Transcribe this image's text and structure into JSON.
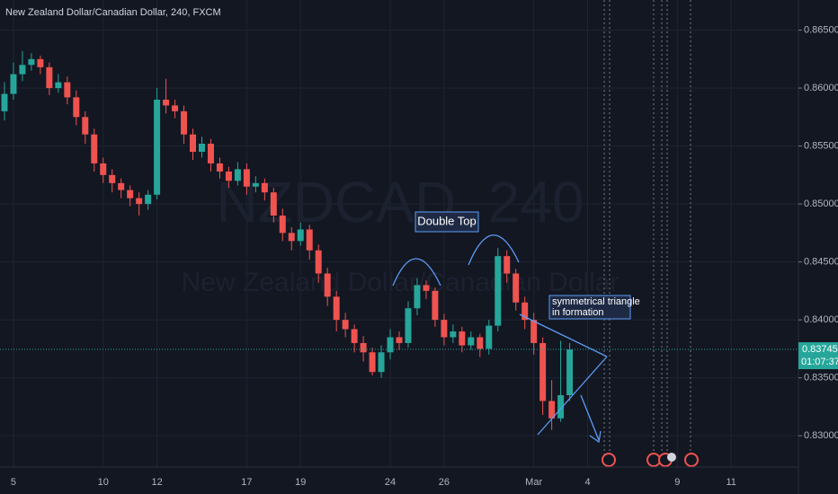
{
  "chart_data": {
    "type": "candlestick",
    "title": "New Zealand Dollar/Canadian Dollar, 240, FXCM",
    "watermark": {
      "symbol": "NZDCAD, 240",
      "description": "New Zealand Dollar/Canadian Dollar"
    },
    "annotations": {
      "double_top": "Double Top",
      "triangle": [
        "symmetrical triangle",
        "in formation"
      ]
    },
    "categories": [
      null,
      "5",
      null,
      null,
      null,
      null,
      null,
      null,
      null,
      null,
      null,
      "10",
      null,
      null,
      null,
      null,
      null,
      "12",
      null,
      null,
      null,
      null,
      null,
      null,
      null,
      null,
      null,
      "17",
      null,
      null,
      null,
      null,
      null,
      "19",
      null,
      null,
      null,
      null,
      null,
      null,
      null,
      null,
      null,
      "24",
      null,
      null,
      null,
      null,
      null,
      "26",
      null,
      null,
      null,
      null,
      null,
      null,
      null,
      null,
      null,
      "Mar",
      null,
      null,
      null,
      null,
      null,
      "4",
      null,
      null,
      null,
      null,
      null,
      null,
      null,
      null,
      null,
      "9",
      null,
      null,
      null,
      null,
      null,
      "11",
      null,
      null,
      null,
      null,
      null,
      null,
      null
    ],
    "open": [
      0.858,
      0.8595,
      0.8612,
      0.862,
      0.8625,
      0.8618,
      0.86,
      0.8605,
      0.8592,
      0.8575,
      0.856,
      0.8535,
      0.8525,
      0.8518,
      0.8512,
      0.8505,
      0.85,
      0.8508,
      0.859,
      0.8585,
      0.858,
      0.856,
      0.8545,
      0.8552,
      0.8535,
      0.8528,
      0.852,
      0.853,
      0.8515,
      0.8518,
      0.851,
      0.849,
      0.8475,
      0.8468,
      0.8478,
      0.846,
      0.844,
      0.842,
      0.84,
      0.8392,
      0.838,
      0.8372,
      0.8355,
      0.8372,
      0.8385,
      0.838,
      0.841,
      0.843,
      0.8425,
      0.84,
      0.8385,
      0.839,
      0.8378,
      0.8385,
      0.8375,
      0.8395,
      0.8455,
      0.844,
      0.8415,
      0.84,
      0.838,
      0.833,
      0.8315,
      0.8335,
      null,
      null,
      null,
      null,
      null,
      null,
      null,
      null,
      null,
      null,
      null,
      null,
      null,
      null,
      null,
      null,
      null,
      null,
      null,
      null,
      null,
      null,
      null,
      null,
      null
    ],
    "high": [
      0.8605,
      0.8622,
      0.8632,
      0.863,
      0.8628,
      0.8622,
      0.8612,
      0.861,
      0.8598,
      0.858,
      0.8565,
      0.854,
      0.853,
      0.8522,
      0.8516,
      0.851,
      0.8512,
      0.86,
      0.8608,
      0.859,
      0.8585,
      0.8565,
      0.8558,
      0.8556,
      0.854,
      0.8532,
      0.8536,
      0.8535,
      0.8524,
      0.8522,
      0.8514,
      0.8496,
      0.848,
      0.8484,
      0.8482,
      0.8465,
      0.8445,
      0.8425,
      0.8406,
      0.8396,
      0.8386,
      0.8376,
      0.8378,
      0.8392,
      0.839,
      0.8416,
      0.8436,
      0.8434,
      0.8428,
      0.8405,
      0.8396,
      0.8394,
      0.839,
      0.8388,
      0.84,
      0.8462,
      0.846,
      0.8444,
      0.842,
      0.8406,
      0.8385,
      0.8348,
      0.8382,
      0.838,
      null,
      null,
      null,
      null,
      null,
      null,
      null,
      null,
      null,
      null,
      null,
      null,
      null,
      null,
      null,
      null,
      null,
      null,
      null,
      null,
      null,
      null,
      null,
      null,
      null
    ],
    "low": [
      0.8572,
      0.859,
      0.8606,
      0.8615,
      0.8612,
      0.8594,
      0.8596,
      0.8586,
      0.8568,
      0.8552,
      0.8528,
      0.8518,
      0.851,
      0.8505,
      0.8498,
      0.849,
      0.8495,
      0.8504,
      0.8578,
      0.8574,
      0.8552,
      0.8538,
      0.854,
      0.8528,
      0.8522,
      0.8514,
      0.8516,
      0.8508,
      0.851,
      0.8503,
      0.8484,
      0.8468,
      0.846,
      0.8464,
      0.8452,
      0.8432,
      0.8412,
      0.839,
      0.8385,
      0.8372,
      0.8364,
      0.8352,
      0.835,
      0.8366,
      0.8374,
      0.8376,
      0.8404,
      0.8418,
      0.8394,
      0.8378,
      0.838,
      0.8372,
      0.8374,
      0.8368,
      0.837,
      0.839,
      0.8432,
      0.8408,
      0.8392,
      0.837,
      0.8318,
      0.8305,
      0.8312,
      0.833,
      null,
      null,
      null,
      null,
      null,
      null,
      null,
      null,
      null,
      null,
      null,
      null,
      null,
      null,
      null,
      null,
      null,
      null,
      null,
      null,
      null,
      null,
      null,
      null,
      null
    ],
    "close": [
      0.8595,
      0.8612,
      0.862,
      0.8625,
      0.8618,
      0.86,
      0.8605,
      0.8592,
      0.8575,
      0.856,
      0.8535,
      0.8525,
      0.8518,
      0.8512,
      0.8505,
      0.85,
      0.8508,
      0.859,
      0.8585,
      0.858,
      0.856,
      0.8545,
      0.8552,
      0.8535,
      0.8528,
      0.852,
      0.853,
      0.8515,
      0.8518,
      0.851,
      0.849,
      0.8475,
      0.8468,
      0.8478,
      0.846,
      0.844,
      0.842,
      0.84,
      0.8392,
      0.838,
      0.8372,
      0.8355,
      0.8372,
      0.8385,
      0.838,
      0.841,
      0.843,
      0.8425,
      0.84,
      0.8385,
      0.839,
      0.8378,
      0.8385,
      0.8375,
      0.8395,
      0.8455,
      0.844,
      0.8415,
      0.84,
      0.838,
      0.833,
      0.8315,
      0.8335,
      0.83745,
      null,
      null,
      null,
      null,
      null,
      null,
      null,
      null,
      null,
      null,
      null,
      null,
      null,
      null,
      null,
      null,
      null,
      null,
      null,
      null,
      null,
      null,
      null,
      null,
      null
    ],
    "colors": {
      "up": "#26a69a",
      "down": "#ef5350"
    },
    "ylim": [
      0.8273,
      0.8676
    ],
    "yticks": [
      {
        "value": 0.865,
        "label": "0.86500"
      },
      {
        "value": 0.86,
        "label": "0.86000"
      },
      {
        "value": 0.855,
        "label": "0.85500"
      },
      {
        "value": 0.85,
        "label": "0.85000"
      },
      {
        "value": 0.845,
        "label": "0.84500"
      },
      {
        "value": 0.84,
        "label": "0.84000"
      },
      {
        "value": 0.835,
        "label": "0.83500"
      },
      {
        "value": 0.83,
        "label": "0.83000"
      }
    ],
    "last_price": 0.83745,
    "countdown": "01:07:37",
    "grid": true
  }
}
